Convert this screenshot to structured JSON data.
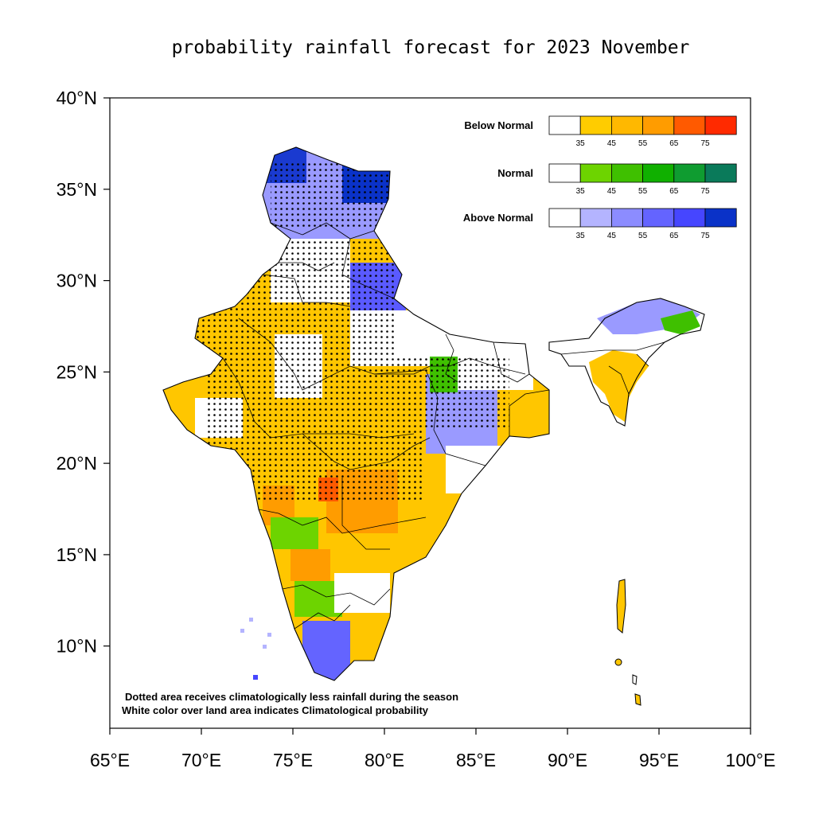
{
  "title": "probability rainfall forecast for 2023 November",
  "axes": {
    "lon_ticks": [
      "65°E",
      "70°E",
      "75°E",
      "80°E",
      "85°E",
      "90°E",
      "95°E",
      "100°E"
    ],
    "lat_ticks": [
      "40°N",
      "35°N",
      "30°N",
      "25°N",
      "20°N",
      "15°N",
      "10°N"
    ],
    "lon_range": [
      65,
      100
    ],
    "lat_range": [
      5.5,
      40
    ]
  },
  "legend": {
    "tick_labels": [
      "35",
      "45",
      "55",
      "65",
      "75"
    ],
    "rows": [
      {
        "label": "Below Normal",
        "colors": [
          "#ffffff",
          "#ffcc00",
          "#ffb800",
          "#ff9c00",
          "#ff5a00",
          "#ff2a00"
        ]
      },
      {
        "label": "Normal",
        "colors": [
          "#ffffff",
          "#6dd400",
          "#3fc000",
          "#10b000",
          "#0f9c30",
          "#0a7a5a"
        ]
      },
      {
        "label": "Above Normal",
        "colors": [
          "#ffffff",
          "#b4b4ff",
          "#8c8cff",
          "#6464ff",
          "#4646ff",
          "#0a32c8"
        ]
      }
    ]
  },
  "notes": [
    "Dotted area receives climatologically less rainfall during the season",
    "White color over land area indicates Climatological probability"
  ]
}
